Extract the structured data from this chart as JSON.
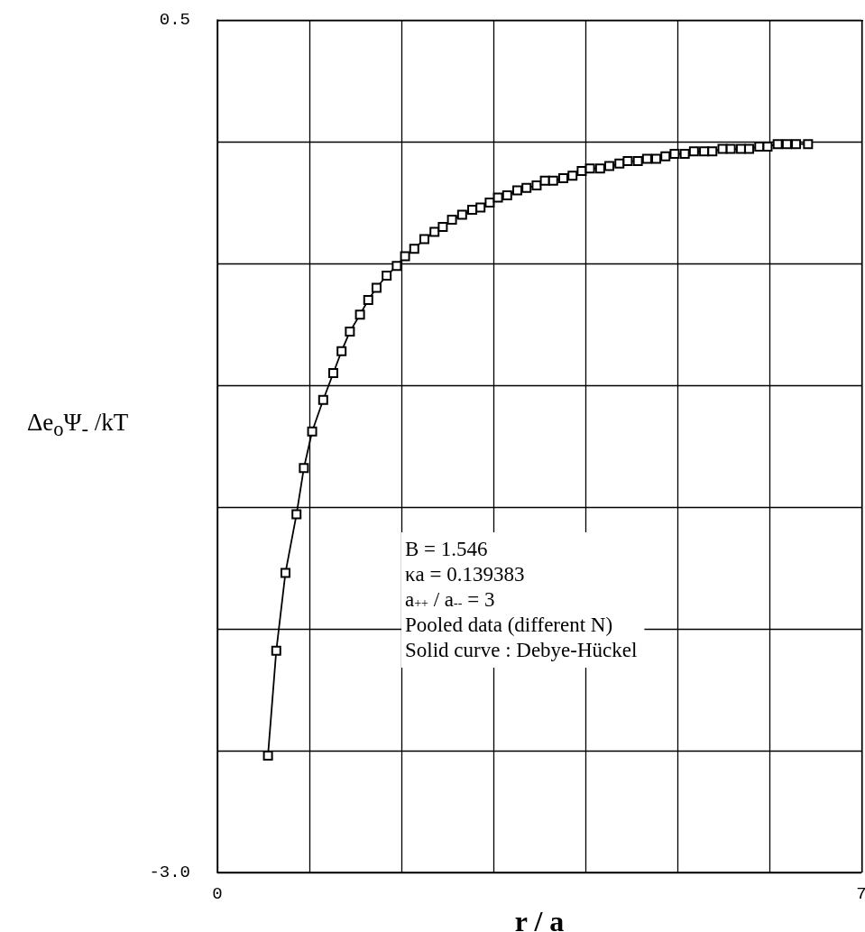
{
  "chart_data": {
    "type": "line",
    "xlabel": "r / a",
    "ylabel": "Δe$_{o}$Ψ$_{-}$ /kT",
    "x": [
      0.55,
      0.64,
      0.74,
      0.86,
      0.94,
      1.03,
      1.15,
      1.26,
      1.35,
      1.44,
      1.55,
      1.64,
      1.73,
      1.84,
      1.95,
      2.04,
      2.14,
      2.25,
      2.36,
      2.45,
      2.55,
      2.66,
      2.77,
      2.86,
      2.96,
      3.05,
      3.15,
      3.26,
      3.36,
      3.47,
      3.56,
      3.65,
      3.76,
      3.86,
      3.96,
      4.05,
      4.16,
      4.26,
      4.37,
      4.46,
      4.57,
      4.67,
      4.77,
      4.87,
      4.97,
      5.08,
      5.18,
      5.29,
      5.38,
      5.49,
      5.58,
      5.69,
      5.78,
      5.89,
      5.98,
      6.09,
      6.19,
      6.29,
      6.42
    ],
    "series": [
      {
        "color": "#000000",
        "values": [
          -2.52,
          -2.09,
          -1.77,
          -1.53,
          -1.34,
          -1.19,
          -1.06,
          -0.95,
          -0.86,
          -0.78,
          -0.71,
          -0.65,
          -0.6,
          -0.55,
          -0.51,
          -0.47,
          -0.44,
          -0.4,
          -0.37,
          -0.35,
          -0.32,
          -0.3,
          -0.28,
          -0.27,
          -0.25,
          -0.23,
          -0.22,
          -0.2,
          -0.19,
          -0.18,
          -0.16,
          -0.16,
          -0.15,
          -0.14,
          -0.12,
          -0.11,
          -0.11,
          -0.1,
          -0.09,
          -0.08,
          -0.08,
          -0.07,
          -0.07,
          -0.06,
          -0.05,
          -0.05,
          -0.04,
          -0.04,
          -0.04,
          -0.03,
          -0.03,
          -0.03,
          -0.03,
          -0.02,
          -0.02,
          -0.01,
          -0.01,
          -0.01,
          -0.01
        ]
      }
    ],
    "xlim": [
      0,
      7
    ],
    "xticks": [
      0,
      {
        "value": 1,
        "label": null
      },
      {
        "value": 2,
        "label": null
      },
      {
        "value": 3,
        "label": null
      },
      {
        "value": 4,
        "label": null
      },
      {
        "value": 5,
        "label": null
      },
      {
        "value": 6,
        "label": null
      },
      7
    ],
    "ylim": [
      -3,
      0.5
    ],
    "yticks": [
      {
        "value": -3,
        "label": "-3.0"
      },
      {
        "value": -2.5,
        "label": null
      },
      {
        "value": -2,
        "label": null
      },
      {
        "value": -1.5,
        "label": null
      },
      {
        "value": -1,
        "label": null
      },
      {
        "value": -0.5,
        "label": null
      },
      {
        "value": 0,
        "label": null
      },
      0.5
    ],
    "annotations": [
      "B = 1.546",
      "κa = 0.139383",
      "a$_{++}$ / a$_{--}$ = 3",
      "Pooled data (different N)",
      "Solid curve : Debye-Hückel"
    ],
    "grid": true,
    "marker": "square",
    "line_style": "solid"
  }
}
